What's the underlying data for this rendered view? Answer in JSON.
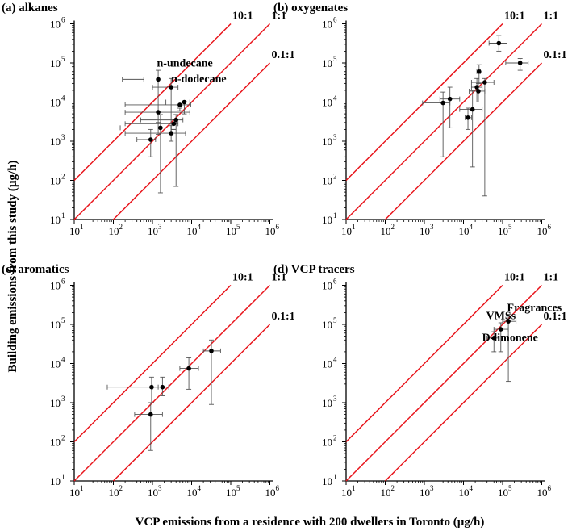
{
  "figure": {
    "xlabel": "VCP emissions from a residence with 200 dwellers in Toronto (µg/h)",
    "ylabel": "Building emissions from this study (µg/h)"
  },
  "style": {
    "line_color": "#e8141b",
    "point_color": "#000000",
    "error_color": "#555555"
  },
  "chart_data": [
    {
      "type": "scatter",
      "title": "(a) alkanes",
      "xscale": "log",
      "yscale": "log",
      "xlim": [
        10,
        1000000
      ],
      "ylim": [
        10,
        1000000
      ],
      "xtick_exponents": [
        "1",
        "2",
        "3",
        "4",
        "5",
        "6"
      ],
      "ytick_exponents": [
        "1",
        "2",
        "3",
        "4",
        "5",
        "6"
      ],
      "ratio_lines": [
        {
          "label": "10:1",
          "ratio": 10
        },
        {
          "label": "1:1",
          "ratio": 1
        },
        {
          "label": "0.1:1",
          "ratio": 0.1
        }
      ],
      "annotations": [
        {
          "text": "n-undecane",
          "x": 1300,
          "y": 80000
        },
        {
          "text": "n-dodecane",
          "x": 3000,
          "y": 32000
        }
      ],
      "points": [
        {
          "x": 1400,
          "y": 38000,
          "xerr": [
            170,
            600
          ],
          "yerr": [
            1500,
            65000
          ]
        },
        {
          "x": 3000,
          "y": 24000,
          "xerr": [
            1000,
            4500
          ],
          "yerr": [
            1500,
            40000
          ]
        },
        {
          "x": 6500,
          "y": 10000,
          "xerr": [
            2200,
            9000
          ],
          "yerr": [
            5000,
            10500
          ]
        },
        {
          "x": 5000,
          "y": 8500,
          "xerr": [
            200,
            9500
          ],
          "yerr": [
            6000,
            7000
          ]
        },
        {
          "x": 1400,
          "y": 5500,
          "xerr": [
            200,
            9000
          ],
          "yerr": [
            3000,
            3000
          ]
        },
        {
          "x": 4000,
          "y": 3500,
          "xerr": [
            500,
            6000
          ],
          "yerr": [
            70,
            4800
          ]
        },
        {
          "x": 3500,
          "y": 2800,
          "xerr": [
            200,
            4500
          ],
          "yerr": [
            2000,
            2000
          ]
        },
        {
          "x": 1600,
          "y": 2200,
          "xerr": [
            150,
            3000
          ],
          "yerr": [
            48,
            4800
          ]
        },
        {
          "x": 3000,
          "y": 1600,
          "xerr": [
            200,
            7000
          ],
          "yerr": [
            1000,
            2500
          ]
        },
        {
          "x": 900,
          "y": 1100,
          "xerr": [
            400,
            1200
          ],
          "yerr": [
            400,
            2000
          ]
        }
      ]
    },
    {
      "type": "scatter",
      "title": "(b) oxygenates",
      "xscale": "log",
      "yscale": "log",
      "xlim": [
        10,
        1000000
      ],
      "ylim": [
        10,
        1000000
      ],
      "xtick_exponents": [
        "1",
        "2",
        "3",
        "4",
        "5",
        "6"
      ],
      "ytick_exponents": [
        "1",
        "2",
        "3",
        "4",
        "5",
        "6"
      ],
      "ratio_lines": [
        {
          "label": "10:1",
          "ratio": 10
        },
        {
          "label": "1:1",
          "ratio": 1
        },
        {
          "label": "0.1:1",
          "ratio": 0.1
        }
      ],
      "annotations": [],
      "points": [
        {
          "x": 80000,
          "y": 320000,
          "xerr": [
            45000,
            130000
          ],
          "yerr": [
            200000,
            500000
          ]
        },
        {
          "x": 280000,
          "y": 100000,
          "xerr": [
            120000,
            450000
          ],
          "yerr": [
            65000,
            130000
          ]
        },
        {
          "x": 25000,
          "y": 60000,
          "xerr": [
            22000,
            27000
          ],
          "yerr": [
            30000,
            90000
          ]
        },
        {
          "x": 35000,
          "y": 32000,
          "xerr": [
            16000,
            60000
          ],
          "yerr": [
            40,
            40000
          ]
        },
        {
          "x": 22000,
          "y": 24000,
          "xerr": [
            16000,
            30000
          ],
          "yerr": [
            10000,
            40000
          ]
        },
        {
          "x": 24000,
          "y": 19000,
          "xerr": [
            14000,
            35000
          ],
          "yerr": [
            10000,
            30000
          ]
        },
        {
          "x": 4500,
          "y": 12000,
          "xerr": [
            2500,
            8000
          ],
          "yerr": [
            2200,
            24000
          ]
        },
        {
          "x": 3000,
          "y": 9500,
          "xerr": [
            900,
            4500
          ],
          "yerr": [
            400,
            18000
          ]
        },
        {
          "x": 17000,
          "y": 6500,
          "xerr": [
            8000,
            30000
          ],
          "yerr": [
            220,
            20000
          ]
        },
        {
          "x": 13000,
          "y": 4000,
          "xerr": [
            11000,
            16000
          ],
          "yerr": [
            2000,
            7000
          ]
        }
      ]
    },
    {
      "type": "scatter",
      "title": "(c) aromatics",
      "xscale": "log",
      "yscale": "log",
      "xlim": [
        10,
        1000000
      ],
      "ylim": [
        10,
        1000000
      ],
      "xtick_exponents": [
        "1",
        "2",
        "3",
        "4",
        "5",
        "6"
      ],
      "ytick_exponents": [
        "1",
        "2",
        "3",
        "4",
        "5",
        "6"
      ],
      "ratio_lines": [
        {
          "label": "10:1",
          "ratio": 10
        },
        {
          "label": "1:1",
          "ratio": 1
        },
        {
          "label": "0.1:1",
          "ratio": 0.1
        }
      ],
      "annotations": [],
      "points": [
        {
          "x": 32000,
          "y": 21000,
          "xerr": [
            20000,
            55000
          ],
          "yerr": [
            900,
            40000
          ]
        },
        {
          "x": 8500,
          "y": 7500,
          "xerr": [
            5000,
            15000
          ],
          "yerr": [
            2200,
            14000
          ]
        },
        {
          "x": 1800,
          "y": 2500,
          "xerr": [
            1000,
            2600
          ],
          "yerr": [
            1500,
            4500
          ]
        },
        {
          "x": 950,
          "y": 2500,
          "xerr": [
            70,
            1400
          ],
          "yerr": [
            1000,
            4500
          ]
        },
        {
          "x": 900,
          "y": 500,
          "xerr": [
            350,
            1800
          ],
          "yerr": [
            60,
            1000
          ]
        }
      ]
    },
    {
      "type": "scatter",
      "title": "(d) VCP tracers",
      "xscale": "log",
      "yscale": "log",
      "xlim": [
        10,
        1000000
      ],
      "ylim": [
        10,
        1000000
      ],
      "xtick_exponents": [
        "1",
        "2",
        "3",
        "4",
        "5",
        "6"
      ],
      "ytick_exponents": [
        "1",
        "2",
        "3",
        "4",
        "5",
        "6"
      ],
      "ratio_lines": [
        {
          "label": "10:1",
          "ratio": 10
        },
        {
          "label": "1:1",
          "ratio": 1
        },
        {
          "label": "0.1:1",
          "ratio": 0.1
        }
      ],
      "annotations": [
        {
          "text": "Fragrances",
          "x": 130000,
          "y": 220000
        },
        {
          "text": "VMSs",
          "x": 38000,
          "y": 135000
        },
        {
          "text": "D-limonene",
          "x": 30000,
          "y": 38000
        }
      ],
      "points": [
        {
          "x": 140000,
          "y": 120000,
          "xerr": [
            100000,
            220000
          ],
          "yerr": [
            3500,
            180000
          ]
        },
        {
          "x": 90000,
          "y": 75000,
          "xerr": [
            60000,
            140000
          ],
          "yerr": [
            20000,
            110000
          ]
        },
        {
          "x": 60000,
          "y": 45000,
          "xerr": [
            40000,
            80000
          ],
          "yerr": [
            20000,
            65000
          ]
        }
      ]
    }
  ]
}
